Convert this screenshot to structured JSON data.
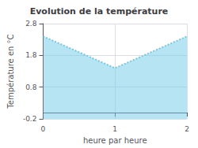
{
  "chart_data": {
    "type": "area",
    "title": "Evolution de la température",
    "xlabel": "heure par heure",
    "ylabel": "Température en °C",
    "x": [
      0,
      1,
      2
    ],
    "values": [
      2.4,
      1.4,
      2.4
    ],
    "xlim": [
      0,
      2
    ],
    "xticks": [
      0,
      1,
      2
    ],
    "ylim": [
      -0.2,
      2.8
    ],
    "yticks": [
      -0.2,
      0.8,
      1.8,
      2.8
    ],
    "color": "#6ecae8",
    "line_style": "dotted",
    "grid": true
  }
}
